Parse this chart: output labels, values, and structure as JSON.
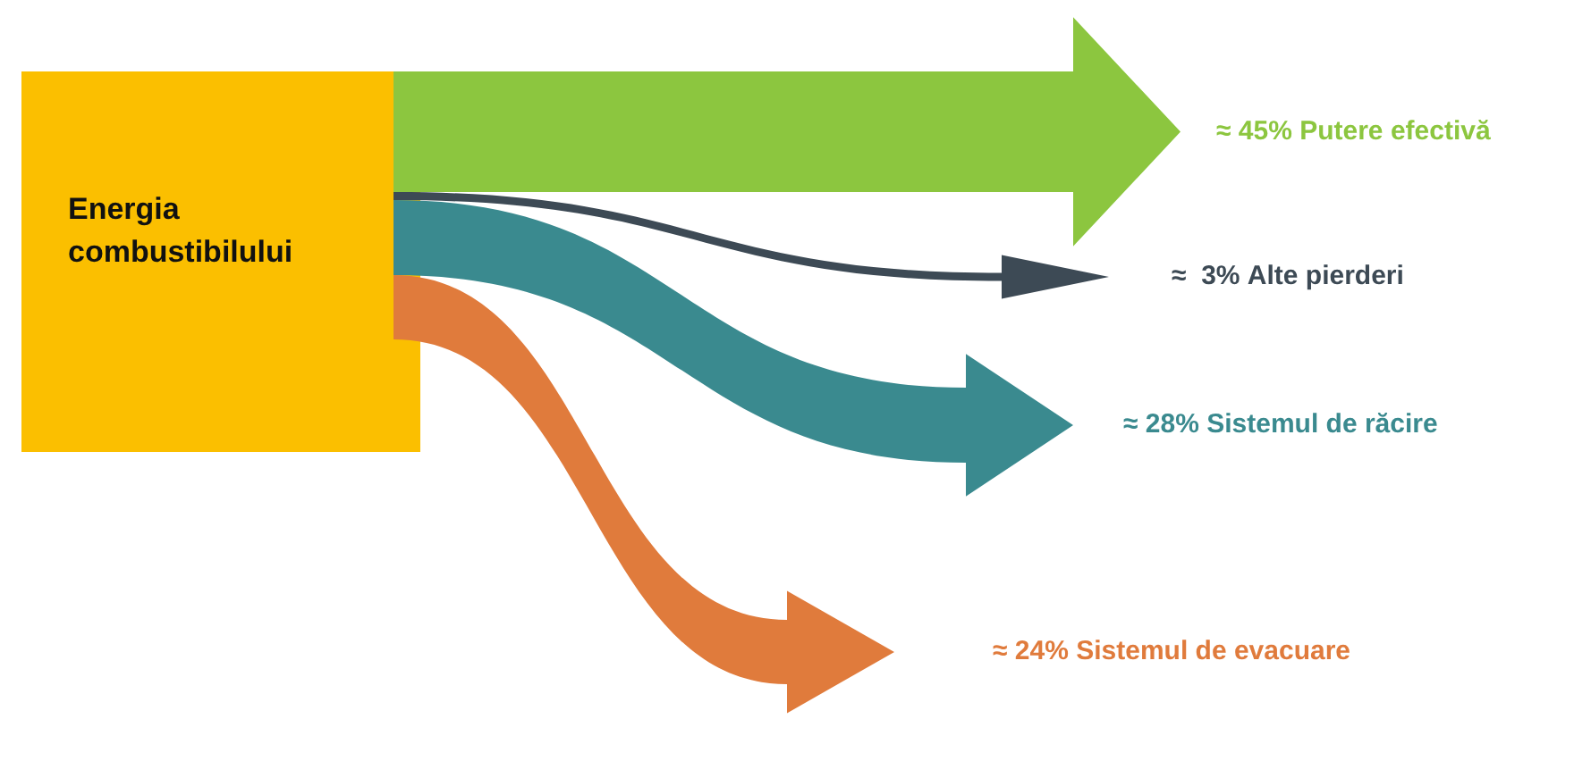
{
  "chart_data": {
    "type": "other",
    "categories": [
      "Putere efectivă",
      "Alte pierderi",
      "Sistemul de răcire",
      "Sistemul de evacuare"
    ],
    "values": [
      45,
      3,
      28,
      24
    ],
    "value_labels": [
      "≈ 45%",
      "≈  3%",
      "≈ 28%",
      "≈ 24%"
    ],
    "colors": [
      "#8cc63f",
      "#3d4a55",
      "#3a8a8f",
      "#e07b3c"
    ],
    "annotations": [
      "Energia combustibilului"
    ]
  }
}
